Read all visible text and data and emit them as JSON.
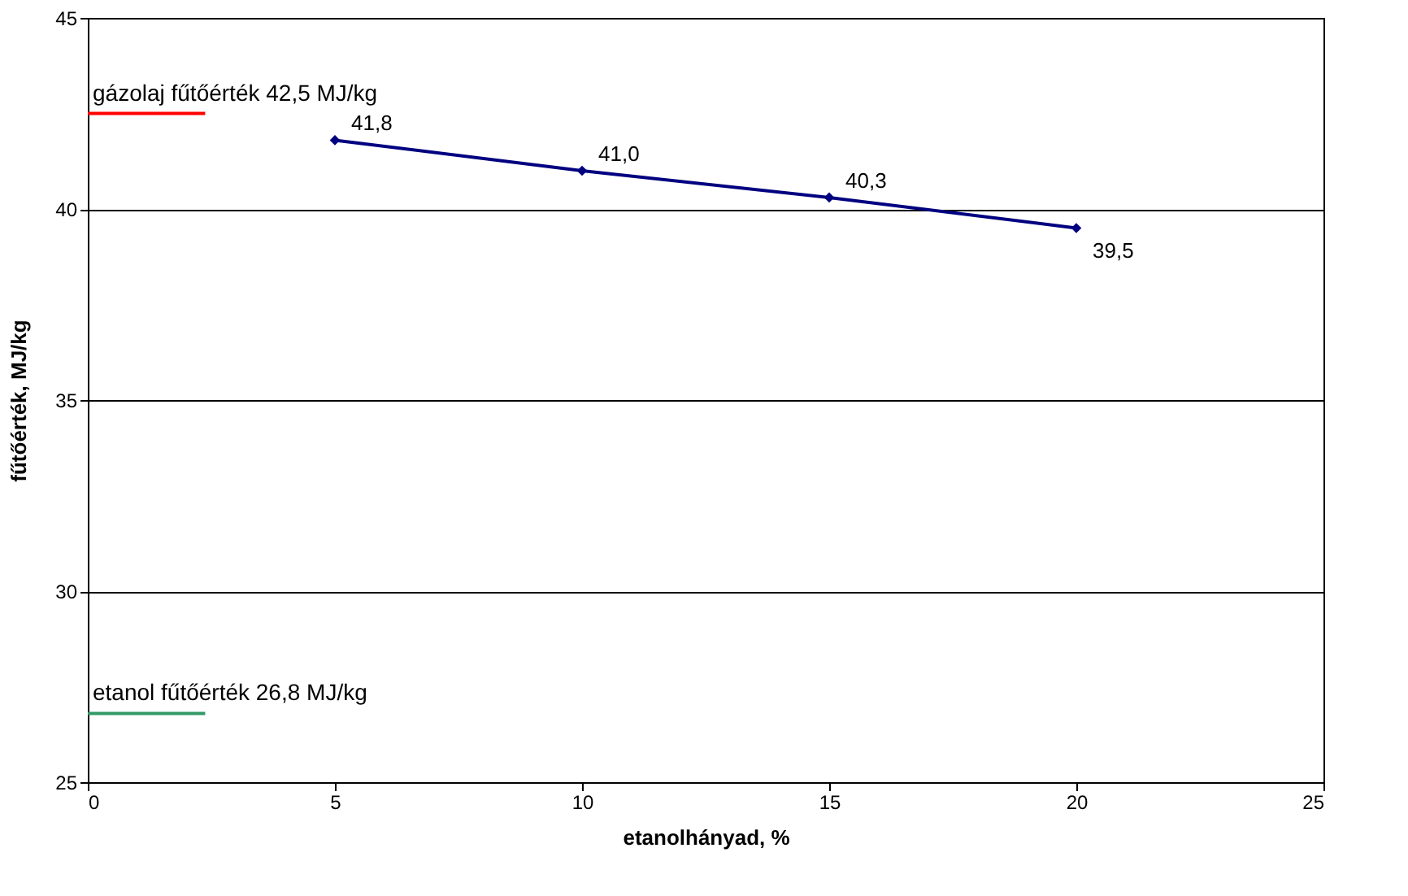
{
  "chart_data": {
    "type": "line",
    "xlabel": "etanolhányad, %",
    "ylabel": "fűtőérték, MJ/kg",
    "x": [
      5,
      10,
      15,
      20
    ],
    "series": [
      {
        "color": "#000080",
        "values": [
          41.8,
          41.0,
          40.3,
          39.5
        ],
        "value_labels": [
          "41,8",
          "41,0",
          "40,3",
          "39,5"
        ]
      }
    ],
    "xlim": [
      0,
      25
    ],
    "xticks": [
      0,
      5,
      10,
      15,
      20,
      25
    ],
    "ylim": [
      25,
      45
    ],
    "yticks": [
      25,
      30,
      35,
      40,
      45
    ],
    "ref_lines": [
      {
        "axis": "y",
        "value": 42.5,
        "label": "gázolaj fűtőérték 42,5 MJ/kg",
        "color": "#ff0000"
      },
      {
        "axis": "y",
        "value": 26.8,
        "label": "etanol fűtőérték 26,8 MJ/kg",
        "color": "#339966"
      }
    ],
    "grid": "y",
    "marker": "diamond",
    "line_style": "solid"
  }
}
